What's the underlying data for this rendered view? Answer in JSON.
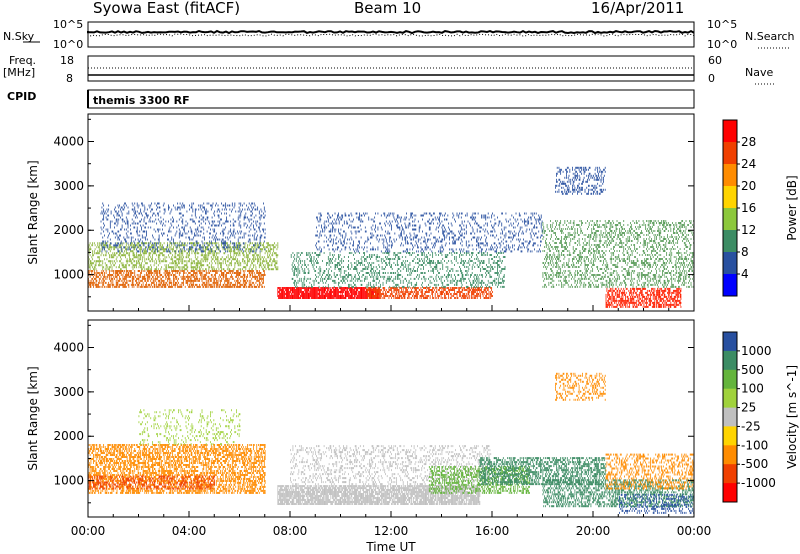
{
  "header": {
    "station": "Syowa East (fitACF)",
    "beam": "Beam 10",
    "date": "16/Apr/2011"
  },
  "top_panels": {
    "nsky_label": "N.Sky",
    "nsearch_label": "N.Search",
    "nsky_ticks": [
      "10^5",
      "10^0"
    ],
    "nsky_right_ticks": [
      "10^5",
      "10^0"
    ],
    "freq_label": "Freq.",
    "freq_unit": "[MHz]",
    "freq_ticks": [
      "18",
      "8"
    ],
    "nave_label": "Nave",
    "nave_ticks": [
      "60",
      "0"
    ],
    "cpid_label": "CPID",
    "cpid_value": "themis 3300 RF"
  },
  "chart_data": [
    {
      "type": "heatmap",
      "quantity": "Power",
      "colorbar_label": "Power [dB]",
      "colorbar_ticks": [
        "28",
        "24",
        "20",
        "16",
        "12",
        "8",
        "4"
      ],
      "colorbar_colors": [
        "#ff0000",
        "#f04000",
        "#ff8c00",
        "#ffd400",
        "#8cc83c",
        "#3c8c64",
        "#2850a0",
        "#0000ff"
      ],
      "ylabel": "Slant Range [km]",
      "ytick_labels": [
        "4000",
        "3000",
        "2000",
        "1000"
      ],
      "yticks": [
        4000,
        3000,
        2000,
        1000
      ],
      "ylim": [
        180,
        4620
      ],
      "xlim": [
        0,
        24
      ],
      "bands": [
        {
          "t0": 0,
          "t1": 7.0,
          "r0": 700,
          "r1": 1100,
          "color": "#e06000",
          "density": 0.55
        },
        {
          "t0": 0,
          "t1": 7.5,
          "r0": 1100,
          "r1": 1700,
          "color": "#8cb43c",
          "density": 0.4
        },
        {
          "t0": 0.5,
          "t1": 7.0,
          "r0": 1500,
          "r1": 2600,
          "color": "#2850a0",
          "density": 0.2
        },
        {
          "t0": 7.5,
          "t1": 11.5,
          "r0": 450,
          "r1": 700,
          "color": "#ff0000",
          "density": 0.9
        },
        {
          "t0": 11.0,
          "t1": 16.0,
          "r0": 450,
          "r1": 700,
          "color": "#f04000",
          "density": 0.6
        },
        {
          "t0": 8.0,
          "t1": 16.5,
          "r0": 700,
          "r1": 1500,
          "color": "#3c8c64",
          "density": 0.25
        },
        {
          "t0": 9.0,
          "t1": 18.0,
          "r0": 1500,
          "r1": 2400,
          "color": "#2850a0",
          "density": 0.2
        },
        {
          "t0": 18.0,
          "t1": 24,
          "r0": 700,
          "r1": 2200,
          "color": "#5a9c5a",
          "density": 0.3
        },
        {
          "t0": 20.5,
          "t1": 23.5,
          "r0": 250,
          "r1": 700,
          "color": "#ff2000",
          "density": 0.6
        },
        {
          "t0": 18.5,
          "t1": 20.5,
          "r0": 2800,
          "r1": 3400,
          "color": "#2850a0",
          "density": 0.3
        }
      ]
    },
    {
      "type": "heatmap",
      "quantity": "Velocity",
      "colorbar_label": "Velocity [m s^-1]",
      "colorbar_ticks": [
        "1000",
        "500",
        "100",
        "25",
        "-25",
        "-100",
        "-500",
        "-1000"
      ],
      "colorbar_colors": [
        "#2850a0",
        "#3c8c64",
        "#64b43c",
        "#a0d23c",
        "#c0c0c0",
        "#ffd400",
        "#ff8c00",
        "#f04000",
        "#ff0000"
      ],
      "ylabel": "Slant Range [km]",
      "ytick_labels": [
        "4000",
        "3000",
        "2000",
        "1000"
      ],
      "yticks": [
        4000,
        3000,
        2000,
        1000
      ],
      "ylim": [
        180,
        4620
      ],
      "xlim": [
        0,
        24
      ],
      "xlabel": "Time UT",
      "xtick_labels": [
        "00:00",
        "04:00",
        "08:00",
        "12:00",
        "16:00",
        "20:00",
        "00:00"
      ],
      "xticks": [
        0,
        4,
        8,
        12,
        16,
        20,
        24
      ],
      "bands": [
        {
          "t0": 0,
          "t1": 7.0,
          "r0": 700,
          "r1": 1800,
          "color": "#ff8c00",
          "density": 0.55
        },
        {
          "t0": 0,
          "t1": 5.0,
          "r0": 800,
          "r1": 1100,
          "color": "#f04000",
          "density": 0.4
        },
        {
          "t0": 7.5,
          "t1": 15.5,
          "r0": 450,
          "r1": 900,
          "color": "#c0c0c0",
          "density": 0.8
        },
        {
          "t0": 8.0,
          "t1": 16.0,
          "r0": 900,
          "r1": 1800,
          "color": "#c0c0c0",
          "density": 0.25
        },
        {
          "t0": 13.5,
          "t1": 17.5,
          "r0": 700,
          "r1": 1300,
          "color": "#64b43c",
          "density": 0.45
        },
        {
          "t0": 15.5,
          "t1": 20.5,
          "r0": 900,
          "r1": 1500,
          "color": "#3c8c64",
          "density": 0.5
        },
        {
          "t0": 18.0,
          "t1": 24,
          "r0": 400,
          "r1": 1000,
          "color": "#3c8c64",
          "density": 0.45
        },
        {
          "t0": 21.0,
          "t1": 24,
          "r0": 250,
          "r1": 700,
          "color": "#2850a0",
          "density": 0.3
        },
        {
          "t0": 20.5,
          "t1": 24,
          "r0": 800,
          "r1": 1600,
          "color": "#ff8c00",
          "density": 0.35
        },
        {
          "t0": 18.5,
          "t1": 20.5,
          "r0": 2800,
          "r1": 3400,
          "color": "#ff8c00",
          "density": 0.3
        },
        {
          "t0": 2.0,
          "t1": 6.0,
          "r0": 1800,
          "r1": 2600,
          "color": "#a0d23c",
          "density": 0.15
        }
      ]
    }
  ]
}
